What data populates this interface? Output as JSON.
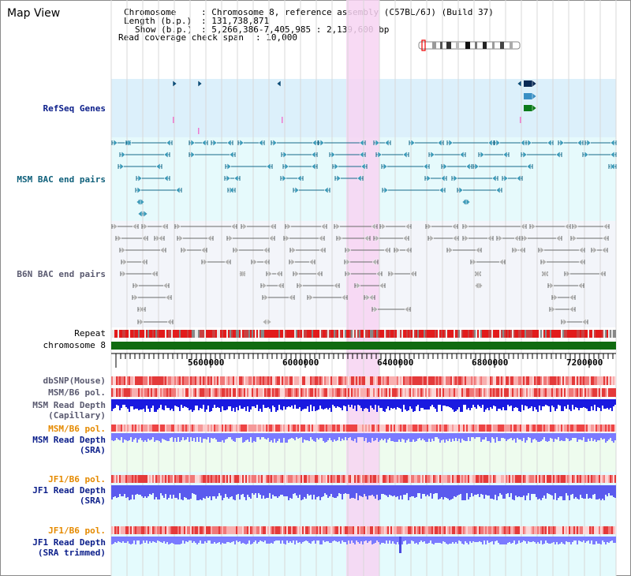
{
  "app": {
    "title": "Map View"
  },
  "info": {
    "chromosome_key": "Chromosome",
    "chromosome_value": ": Chromosome 8, reference assembly (C57BL/6J) (Build 37)",
    "length_key": "Length (b.p.)",
    "length_value": ": 131,738,871",
    "show_key": "Show (b.p.)",
    "show_value": ": 5,266,386-7,405,985 : 2,139,600 bp",
    "coverage_key": "Read coverage check span",
    "coverage_value": ": 10,000"
  },
  "tracks": {
    "refseq_genes": "RefSeq Genes",
    "msm_bac": "MSM BAC end pairs",
    "b6n_bac": "B6N BAC end pairs",
    "repeat": "Repeat",
    "chromosome": "chromosome 8",
    "dbsnp": "dbSNP(Mouse)",
    "msm_b6_pol_1": "MSM/B6 pol.",
    "msm_read_depth_cap_1": "MSM Read Depth",
    "msm_read_depth_cap_2": "(Capillary)",
    "msm_b6_pol_2": "MSM/B6 pol.",
    "msm_read_depth_sra_1": "MSM Read Depth",
    "msm_read_depth_sra_2": "(SRA)",
    "jf1_b6_pol_1": "JF1/B6 pol.",
    "jf1_read_depth_sra_1": "JF1 Read Depth",
    "jf1_read_depth_sra_2": "(SRA)",
    "jf1_b6_pol_2": "JF1/B6 pol.",
    "jf1_read_depth_trim_1": "JF1 Read Depth",
    "jf1_read_depth_trim_2": "(SRA trimmed)"
  },
  "axis": {
    "ticks": [
      "5600000",
      "6000000",
      "6400000",
      "6800000",
      "7200000"
    ]
  },
  "colors": {
    "highlight": "#f7d4f2",
    "refseq_bg": "#dcf0fb",
    "msm_bac_bg": "#e6fafc",
    "b6n_bac_bg": "#f3f5fa",
    "chromosome_bar": "#106b10",
    "repeat_red": "#e21b1b",
    "msm_bac_line": "#166a8a",
    "b6n_bac_line": "#6a6a6a",
    "read_depth_blue": "#1a1ae0",
    "read_depth_light": "#7a7aff"
  }
}
